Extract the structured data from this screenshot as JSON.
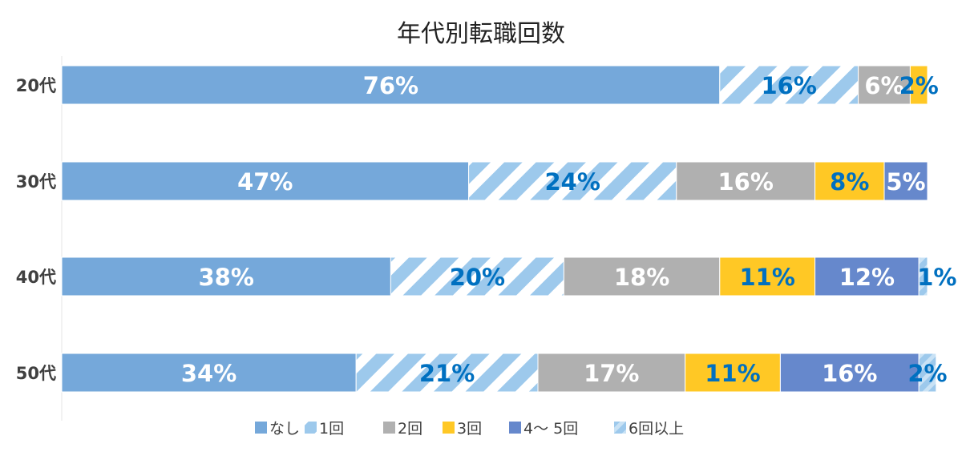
{
  "chart_data": {
    "type": "bar",
    "stacked": true,
    "orientation": "horizontal",
    "title": "年代別転職回数",
    "categories": [
      "20代",
      "30代",
      "40代",
      "50代"
    ],
    "xlim": [
      0,
      100
    ],
    "grid": false,
    "legend_position": "bottom",
    "series": [
      {
        "name": "なし",
        "values": [
          76,
          47,
          38,
          34
        ],
        "color": "#75A8DA",
        "pattern": "solid",
        "label_color": "#FFFFFF"
      },
      {
        "name": "1回",
        "values": [
          16,
          24,
          20,
          21
        ],
        "color": "#9DC9EC",
        "pattern": "hatch",
        "label_color": "#0070C0"
      },
      {
        "name": "2回",
        "values": [
          6,
          16,
          18,
          17
        ],
        "color": "#B0B0B0",
        "pattern": "solid",
        "label_color": "#FFFFFF"
      },
      {
        "name": "3回",
        "values": [
          2,
          8,
          11,
          11
        ],
        "color": "#FFC825",
        "pattern": "solid",
        "label_color": "#0070C0"
      },
      {
        "name": "4～ 5回",
        "values": [
          0,
          5,
          12,
          16
        ],
        "color": "#6688CC",
        "pattern": "solid",
        "label_color": "#FFFFFF"
      },
      {
        "name": "6回以上",
        "values": [
          0,
          0,
          1,
          2
        ],
        "color": "#9DC9EC",
        "pattern": "hatch-light",
        "label_color": "#0070C0"
      }
    ]
  }
}
